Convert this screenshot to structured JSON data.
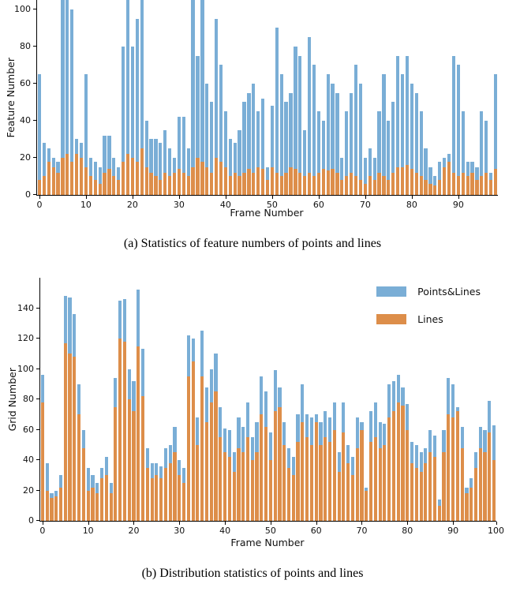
{
  "colors": {
    "points_lines": "#7aaed6",
    "lines": "#dd8e4a",
    "axis": "#000000",
    "background": "#ffffff"
  },
  "captions": {
    "a": "(a) Statistics of feature numbers of points and lines",
    "b": "(b) Distribution statistics of points and lines"
  },
  "legend": {
    "position": "upper-right",
    "items": [
      {
        "label": "Points&Lines",
        "color_key": "points_lines"
      },
      {
        "label": "Lines",
        "color_key": "lines"
      }
    ]
  },
  "chart_data": [
    {
      "id": "chart-a",
      "type": "bar",
      "stacked": true,
      "title": "",
      "xlabel": "Frame Number",
      "ylabel": "Feature Number",
      "ylim": [
        0,
        105
      ],
      "yticks": [
        0,
        20,
        40,
        60,
        80,
        100
      ],
      "xticks": [
        0,
        10,
        20,
        30,
        40,
        50,
        60,
        70,
        80,
        90
      ],
      "x_start": 0,
      "grid": false,
      "series": [
        {
          "name": "Points&Lines",
          "color_key": "points_lines",
          "values": [
            65,
            28,
            25,
            20,
            18,
            105,
            105,
            100,
            30,
            28,
            65,
            20,
            18,
            15,
            32,
            32,
            20,
            15,
            80,
            105,
            80,
            95,
            105,
            40,
            30,
            30,
            28,
            35,
            25,
            20,
            42,
            42,
            25,
            105,
            75,
            105,
            60,
            50,
            95,
            70,
            45,
            30,
            28,
            35,
            50,
            55,
            60,
            45,
            52,
            15,
            48,
            90,
            65,
            50,
            55,
            80,
            75,
            35,
            85,
            70,
            45,
            40,
            65,
            60,
            55,
            20,
            45,
            55,
            70,
            60,
            20,
            25,
            20,
            45,
            65,
            40,
            50,
            75,
            65,
            75,
            60,
            55,
            45,
            25,
            15,
            10,
            18,
            20,
            22,
            75,
            70,
            45,
            18,
            18,
            15,
            45,
            40,
            12,
            65
          ]
        },
        {
          "name": "Lines",
          "color_key": "lines",
          "values": [
            8,
            10,
            18,
            15,
            12,
            20,
            22,
            18,
            22,
            20,
            15,
            10,
            8,
            6,
            12,
            14,
            10,
            8,
            18,
            22,
            20,
            18,
            25,
            15,
            12,
            10,
            8,
            12,
            10,
            12,
            14,
            12,
            10,
            15,
            20,
            18,
            15,
            12,
            20,
            18,
            15,
            10,
            12,
            10,
            12,
            14,
            12,
            15,
            14,
            8,
            15,
            12,
            10,
            12,
            15,
            14,
            12,
            10,
            12,
            10,
            12,
            14,
            13,
            14,
            12,
            8,
            10,
            12,
            10,
            8,
            6,
            10,
            8,
            12,
            10,
            8,
            12,
            15,
            15,
            16,
            14,
            12,
            10,
            8,
            6,
            5,
            8,
            15,
            18,
            12,
            10,
            12,
            10,
            12,
            8,
            10,
            12,
            8,
            14
          ]
        }
      ]
    },
    {
      "id": "chart-b",
      "type": "bar",
      "stacked": true,
      "title": "",
      "xlabel": "Frame Number",
      "ylabel": "Grid Number",
      "ylim": [
        0,
        160
      ],
      "yticks": [
        0,
        20,
        40,
        60,
        80,
        100,
        120,
        140
      ],
      "xticks": [
        0,
        10,
        20,
        30,
        40,
        50,
        60,
        70,
        80,
        90,
        100
      ],
      "x_start": 0,
      "grid": false,
      "legend_items": [
        "Points&Lines",
        "Lines"
      ],
      "series": [
        {
          "name": "Points&Lines",
          "color_key": "points_lines",
          "values": [
            96,
            38,
            18,
            20,
            30,
            148,
            147,
            136,
            90,
            60,
            35,
            30,
            25,
            35,
            42,
            25,
            94,
            145,
            146,
            100,
            92,
            152,
            113,
            48,
            38,
            38,
            36,
            48,
            50,
            62,
            40,
            35,
            122,
            120,
            68,
            125,
            88,
            100,
            110,
            75,
            61,
            60,
            45,
            68,
            62,
            78,
            55,
            65,
            95,
            85,
            58,
            99,
            88,
            65,
            48,
            42,
            70,
            90,
            70,
            68,
            70,
            65,
            72,
            68,
            78,
            45,
            78,
            50,
            42,
            68,
            65,
            22,
            72,
            78,
            65,
            64,
            90,
            92,
            96,
            88,
            77,
            52,
            50,
            45,
            48,
            60,
            56,
            14,
            60,
            94,
            90,
            75,
            62,
            22,
            28,
            45,
            62,
            60,
            79,
            63
          ]
        },
        {
          "name": "Lines",
          "color_key": "lines",
          "values": [
            78,
            20,
            15,
            16,
            22,
            117,
            110,
            108,
            70,
            48,
            20,
            22,
            18,
            28,
            30,
            18,
            75,
            120,
            118,
            80,
            72,
            115,
            82,
            35,
            28,
            30,
            28,
            35,
            38,
            45,
            30,
            25,
            95,
            105,
            50,
            95,
            65,
            78,
            85,
            55,
            45,
            42,
            32,
            48,
            45,
            55,
            40,
            45,
            70,
            62,
            40,
            72,
            75,
            50,
            35,
            30,
            52,
            65,
            55,
            50,
            65,
            50,
            55,
            52,
            60,
            32,
            58,
            38,
            30,
            48,
            60,
            20,
            52,
            55,
            48,
            50,
            68,
            72,
            78,
            76,
            60,
            38,
            35,
            32,
            38,
            45,
            42,
            10,
            45,
            70,
            68,
            72,
            48,
            18,
            22,
            35,
            48,
            45,
            58,
            40
          ]
        }
      ]
    }
  ]
}
